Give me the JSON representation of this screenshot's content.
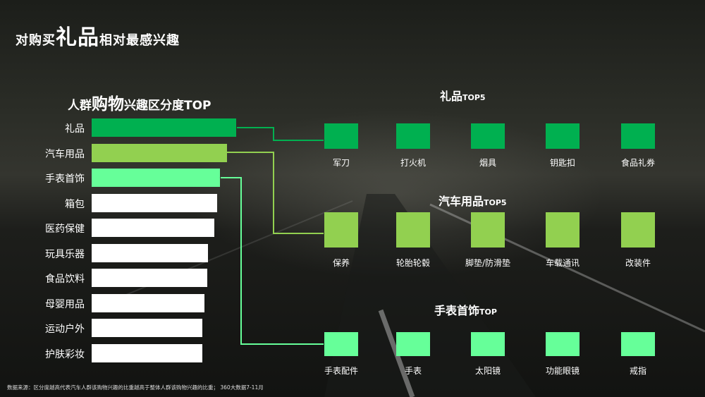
{
  "title": {
    "pre": "对购买",
    "highlight": "礼品",
    "post": "相对最感兴趣"
  },
  "subtitle": {
    "pre": "人群",
    "highlight": "购物",
    "post": "兴趣区分度TOP"
  },
  "colors": {
    "gift": "#00b050",
    "car": "#92d050",
    "watch": "#66ff99",
    "other": "#ffffff"
  },
  "chart_data": [
    {
      "type": "bar",
      "title": "人群购物兴趣区分度TOP",
      "categories": [
        "礼品",
        "汽车用品",
        "手表首饰",
        "箱包",
        "医药保健",
        "玩具乐器",
        "食品饮料",
        "母婴用品",
        "运动户外",
        "护肤彩妆"
      ],
      "values": [
        205,
        192,
        182,
        178,
        174,
        165,
        164,
        160,
        157,
        157
      ],
      "orientation": "horizontal",
      "axis_visible": false,
      "grid": false
    }
  ],
  "sections": [
    {
      "key": "gift",
      "title": "礼品",
      "suffix": "TOP5",
      "items": [
        "军刀",
        "打火机",
        "烟具",
        "钥匙扣",
        "食品礼券"
      ],
      "size": 0.58
    },
    {
      "key": "car",
      "title": "汽车用品",
      "suffix": "TOP5",
      "items": [
        "保养",
        "轮胎轮毂",
        "脚垫/防滑垫",
        "车载通讯",
        "改装件"
      ],
      "size": 1.0
    },
    {
      "key": "watch",
      "title": "手表首饰",
      "suffix": "TOP",
      "items": [
        "手表配件",
        "手表",
        "太阳镜",
        "功能眼镜",
        "戒指"
      ],
      "size": 0.6
    }
  ],
  "footnote": "数据来源：区分度越高代表汽车人群该购物兴趣的比重越高于整体人群该购物兴趣的比重；  360大数据7-11月"
}
